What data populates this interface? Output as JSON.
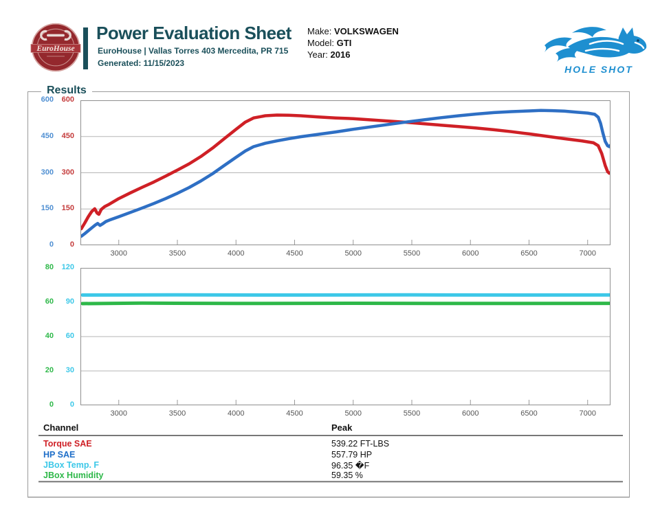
{
  "header": {
    "shop_logo_name": "EuroHouse",
    "title": "Power Evaluation Sheet",
    "subtitle": "EuroHouse | Vallas Torres 403 Mercedita, PR 715",
    "generated": "Generated: 11/15/2023",
    "vehicle": {
      "make_label": "Make: ",
      "make": "VOLKSWAGEN",
      "model_label": "Model: ",
      "model": "GTI",
      "year_label": "Year: ",
      "year": "2016"
    },
    "brand": {
      "name": "HOLE SHOT"
    }
  },
  "results": {
    "legend": "Results"
  },
  "colors": {
    "teal": "#1a4f5a",
    "torque_red": "#cf2026",
    "hp_blue": "#2e6fc4",
    "temp_cyan": "#3dc8e8",
    "humidity_green": "#2eb849"
  },
  "chart_data": [
    {
      "type": "line",
      "title": "Power / Torque vs RPM",
      "x_range": [
        2673,
        7195
      ],
      "x_ticks": [
        3000,
        3500,
        4000,
        4500,
        5000,
        5500,
        6000,
        6500,
        7000
      ],
      "grid": "horizontal",
      "y_axes": [
        {
          "name": "HP scale",
          "min": 0,
          "max": 600,
          "step": 150,
          "color": "#4f8fd2"
        },
        {
          "name": "Torque scale",
          "min": 0,
          "max": 600,
          "step": 150,
          "color": "#c43c3c"
        }
      ],
      "series": [
        {
          "name": "Torque SAE",
          "color": "#cf2026",
          "axis": 1,
          "width": 4.5,
          "points": [
            [
              2680,
              68
            ],
            [
              2710,
              92
            ],
            [
              2740,
              118
            ],
            [
              2770,
              140
            ],
            [
              2795,
              151
            ],
            [
              2815,
              133
            ],
            [
              2830,
              128
            ],
            [
              2850,
              148
            ],
            [
              2880,
              160
            ],
            [
              2920,
              170
            ],
            [
              3000,
              193
            ],
            [
              3100,
              217
            ],
            [
              3200,
              240
            ],
            [
              3300,
              262
            ],
            [
              3400,
              286
            ],
            [
              3500,
              311
            ],
            [
              3600,
              337
            ],
            [
              3700,
              367
            ],
            [
              3800,
              402
            ],
            [
              3900,
              441
            ],
            [
              4000,
              480
            ],
            [
              4080,
              510
            ],
            [
              4150,
              527
            ],
            [
              4250,
              536
            ],
            [
              4350,
              539
            ],
            [
              4450,
              538
            ],
            [
              4550,
              536
            ],
            [
              4700,
              531
            ],
            [
              4850,
              527
            ],
            [
              5000,
              524
            ],
            [
              5150,
              519
            ],
            [
              5300,
              514
            ],
            [
              5450,
              509
            ],
            [
              5600,
              503
            ],
            [
              5750,
              497
            ],
            [
              5900,
              491
            ],
            [
              6050,
              485
            ],
            [
              6200,
              478
            ],
            [
              6350,
              470
            ],
            [
              6500,
              461
            ],
            [
              6650,
              451
            ],
            [
              6800,
              441
            ],
            [
              6950,
              432
            ],
            [
              7050,
              424
            ],
            [
              7090,
              412
            ],
            [
              7120,
              380
            ],
            [
              7150,
              330
            ],
            [
              7170,
              305
            ],
            [
              7185,
              298
            ],
            [
              7195,
              300
            ]
          ]
        },
        {
          "name": "HP SAE",
          "color": "#2e6fc4",
          "axis": 0,
          "width": 4.5,
          "points": [
            [
              2680,
              37
            ],
            [
              2710,
              48
            ],
            [
              2740,
              60
            ],
            [
              2770,
              72
            ],
            [
              2800,
              84
            ],
            [
              2820,
              90
            ],
            [
              2840,
              82
            ],
            [
              2860,
              88
            ],
            [
              2890,
              98
            ],
            [
              2920,
              104
            ],
            [
              3000,
              118
            ],
            [
              3100,
              136
            ],
            [
              3200,
              154
            ],
            [
              3300,
              173
            ],
            [
              3400,
              193
            ],
            [
              3500,
              215
            ],
            [
              3600,
              239
            ],
            [
              3700,
              266
            ],
            [
              3800,
              296
            ],
            [
              3900,
              330
            ],
            [
              4000,
              364
            ],
            [
              4080,
              390
            ],
            [
              4150,
              408
            ],
            [
              4250,
              422
            ],
            [
              4350,
              432
            ],
            [
              4450,
              441
            ],
            [
              4550,
              449
            ],
            [
              4700,
              459
            ],
            [
              4850,
              469
            ],
            [
              5000,
              480
            ],
            [
              5150,
              490
            ],
            [
              5300,
              500
            ],
            [
              5450,
              510
            ],
            [
              5600,
              519
            ],
            [
              5750,
              528
            ],
            [
              5900,
              536
            ],
            [
              6050,
              543
            ],
            [
              6200,
              549
            ],
            [
              6350,
              553
            ],
            [
              6500,
              556
            ],
            [
              6600,
              557.8
            ],
            [
              6700,
              557
            ],
            [
              6800,
              555
            ],
            [
              6900,
              551
            ],
            [
              7000,
              547
            ],
            [
              7060,
              542
            ],
            [
              7090,
              530
            ],
            [
              7110,
              505
            ],
            [
              7130,
              465
            ],
            [
              7150,
              430
            ],
            [
              7170,
              412
            ],
            [
              7185,
              408
            ],
            [
              7195,
              414
            ]
          ]
        }
      ]
    },
    {
      "type": "line",
      "title": "JBox Temp / Humidity vs RPM",
      "x_range": [
        2673,
        7195
      ],
      "x_ticks": [
        3000,
        3500,
        4000,
        4500,
        5000,
        5500,
        6000,
        6500,
        7000
      ],
      "grid": "horizontal",
      "y_axes": [
        {
          "name": "Humidity scale",
          "min": 0,
          "max": 80,
          "step": 20,
          "color": "#2eb849"
        },
        {
          "name": "Temp scale",
          "min": 0,
          "max": 120,
          "step": 30,
          "color": "#3dc8e8"
        }
      ],
      "series": [
        {
          "name": "JBox Temp. F",
          "color": "#3dc8e8",
          "axis": 1,
          "width": 5,
          "points": [
            [
              2690,
              96.3
            ],
            [
              3500,
              96.4
            ],
            [
              4500,
              96.3
            ],
            [
              5500,
              96.4
            ],
            [
              6500,
              96.3
            ],
            [
              7190,
              96.35
            ]
          ]
        },
        {
          "name": "JBox Humidity",
          "color": "#2eb849",
          "axis": 0,
          "width": 5,
          "points": [
            [
              2690,
              59.2
            ],
            [
              3200,
              59.5
            ],
            [
              4000,
              59.3
            ],
            [
              5000,
              59.4
            ],
            [
              6000,
              59.3
            ],
            [
              7190,
              59.35
            ]
          ]
        }
      ]
    }
  ],
  "table": {
    "channel_header": "Channel",
    "peak_header": "Peak",
    "rows": [
      {
        "channel": "Torque SAE",
        "peak": "539.22 FT-LBS",
        "color": "#cf2026"
      },
      {
        "channel": "HP SAE",
        "peak": "557.79 HP",
        "color": "#1e6ec8"
      },
      {
        "channel": "JBox Temp. F",
        "peak": "96.35 �F",
        "color": "#3dc8e8"
      },
      {
        "channel": "JBox Humidity",
        "peak": "59.35 %",
        "color": "#2eb849"
      }
    ]
  }
}
